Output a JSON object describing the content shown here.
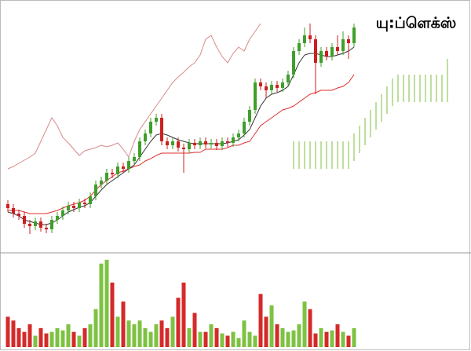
{
  "chart_data": [
    {
      "type": "candlestick",
      "title": "யு:ப்ளெக்ஸ்",
      "open": [
        70,
        65,
        58,
        55,
        45,
        42,
        48,
        40,
        38,
        50,
        55,
        62,
        68,
        65,
        72,
        70,
        80,
        95,
        100,
        110,
        108,
        118,
        115,
        125,
        130,
        150,
        160,
        175,
        180,
        150,
        145,
        150,
        142,
        140,
        148,
        145,
        150,
        146,
        148,
        144,
        150,
        148,
        155,
        160,
        175,
        190,
        225,
        220,
        215,
        222,
        218,
        225,
        235,
        265,
        275,
        285,
        280,
        250,
        265,
        258,
        270,
        265,
        280,
        275
      ],
      "high": [
        75,
        70,
        63,
        60,
        50,
        53,
        53,
        45,
        55,
        60,
        67,
        73,
        73,
        77,
        77,
        85,
        100,
        105,
        115,
        115,
        123,
        123,
        130,
        135,
        155,
        165,
        180,
        185,
        185,
        155,
        155,
        155,
        147,
        153,
        153,
        155,
        155,
        153,
        153,
        155,
        155,
        160,
        165,
        180,
        195,
        230,
        230,
        225,
        227,
        227,
        230,
        240,
        270,
        280,
        295,
        300,
        285,
        270,
        270,
        275,
        285,
        290,
        285,
        300
      ],
      "low": [
        60,
        53,
        50,
        40,
        32,
        37,
        35,
        33,
        33,
        45,
        50,
        57,
        60,
        60,
        65,
        65,
        75,
        90,
        95,
        103,
        103,
        110,
        110,
        120,
        125,
        145,
        155,
        170,
        145,
        140,
        140,
        137,
        110,
        135,
        140,
        140,
        141,
        141,
        139,
        139,
        143,
        143,
        150,
        155,
        170,
        185,
        215,
        205,
        210,
        213,
        213,
        220,
        230,
        260,
        270,
        275,
        210,
        245,
        253,
        253,
        260,
        260,
        255,
        270
      ],
      "close": [
        65,
        58,
        55,
        45,
        42,
        48,
        40,
        38,
        50,
        55,
        62,
        68,
        65,
        72,
        70,
        80,
        95,
        100,
        110,
        108,
        118,
        115,
        125,
        130,
        150,
        160,
        175,
        180,
        150,
        145,
        150,
        142,
        140,
        148,
        145,
        150,
        146,
        148,
        144,
        150,
        148,
        155,
        160,
        175,
        190,
        225,
        220,
        215,
        222,
        218,
        225,
        235,
        265,
        275,
        285,
        280,
        250,
        265,
        258,
        270,
        265,
        280,
        275,
        295
      ],
      "up_color": "#3f9f2a",
      "down_color": "#cc1f1f",
      "lines": [
        {
          "color": "#e03030",
          "values": [
            62,
            62,
            62,
            60,
            58,
            58,
            58,
            58,
            60,
            62,
            65,
            68,
            70,
            72,
            75,
            80,
            88,
            95,
            100,
            105,
            110,
            112,
            115,
            118,
            120,
            125,
            128,
            132,
            135,
            135,
            135,
            135,
            135,
            135,
            136,
            136,
            140,
            140,
            140,
            140,
            142,
            145,
            145,
            148,
            150,
            160,
            170,
            175,
            180,
            185,
            190,
            192,
            195,
            200,
            205,
            210,
            212,
            215,
            215,
            215,
            218,
            220,
            225,
            235
          ]
        },
        {
          "color": "#333333",
          "values": [
            60,
            58,
            55,
            50,
            48,
            46,
            44,
            44,
            46,
            50,
            55,
            60,
            63,
            66,
            68,
            72,
            80,
            88,
            95,
            100,
            105,
            110,
            115,
            120,
            130,
            140,
            150,
            158,
            160,
            158,
            155,
            152,
            150,
            148,
            147,
            147,
            147,
            147,
            147,
            147,
            148,
            150,
            152,
            158,
            165,
            180,
            195,
            205,
            210,
            212,
            215,
            220,
            235,
            250,
            260,
            262,
            262,
            260,
            258,
            258,
            260,
            262,
            265,
            270
          ]
        },
        {
          "color": "#d88a8a",
          "values": [
            115,
            118,
            122,
            126,
            130,
            135,
            150,
            165,
            180,
            170,
            155,
            148,
            140,
            132,
            138,
            140,
            142,
            145,
            143,
            145,
            148,
            140,
            130,
            150,
            165,
            175,
            185,
            195,
            205,
            215,
            225,
            232,
            238,
            245,
            250,
            260,
            280,
            285,
            270,
            258,
            250,
            262,
            270,
            265,
            280,
            290,
            300
          ]
        }
      ],
      "cloud": {
        "color": "#7cbf3c",
        "upper": [
          null,
          null,
          null,
          null,
          null,
          null,
          null,
          null,
          null,
          null,
          null,
          null,
          null,
          null,
          null,
          null,
          null,
          null,
          null,
          null,
          null,
          null,
          null,
          null,
          null,
          null,
          null,
          null,
          null,
          null,
          null,
          null,
          null,
          null,
          null,
          null,
          null,
          null,
          null,
          null,
          null,
          null,
          null,
          null,
          null,
          null,
          null,
          null,
          null,
          null,
          null,
          null,
          150,
          150,
          150,
          150,
          150,
          150,
          150,
          150,
          150,
          150,
          150,
          160,
          170,
          180,
          190,
          200,
          210,
          220,
          230,
          235,
          235,
          235,
          235,
          235,
          235,
          235,
          235,
          235,
          255
        ],
        "lower": [
          null,
          null,
          null,
          null,
          null,
          null,
          null,
          null,
          null,
          null,
          null,
          null,
          null,
          null,
          null,
          null,
          null,
          null,
          null,
          null,
          null,
          null,
          null,
          null,
          null,
          null,
          null,
          null,
          null,
          null,
          null,
          null,
          null,
          null,
          null,
          null,
          null,
          null,
          null,
          null,
          null,
          null,
          null,
          null,
          null,
          null,
          null,
          null,
          null,
          null,
          null,
          null,
          115,
          115,
          115,
          115,
          115,
          115,
          115,
          115,
          115,
          115,
          115,
          125,
          135,
          145,
          155,
          165,
          175,
          185,
          195,
          200,
          200,
          200,
          200,
          200,
          200,
          200,
          200,
          200,
          200
        ]
      },
      "ylim": [
        10,
        320
      ]
    },
    {
      "type": "bar",
      "values": [
        40,
        35,
        25,
        20,
        30,
        15,
        25,
        18,
        20,
        25,
        22,
        30,
        20,
        15,
        25,
        30,
        50,
        110,
        115,
        85,
        40,
        60,
        35,
        30,
        35,
        25,
        20,
        30,
        35,
        25,
        40,
        65,
        85,
        25,
        45,
        20,
        20,
        30,
        25,
        18,
        15,
        20,
        12,
        35,
        20,
        15,
        70,
        40,
        55,
        30,
        25,
        20,
        22,
        30,
        60,
        50,
        18,
        25,
        20,
        22,
        30,
        20,
        15,
        25
      ],
      "ylim": [
        0,
        120
      ]
    }
  ]
}
